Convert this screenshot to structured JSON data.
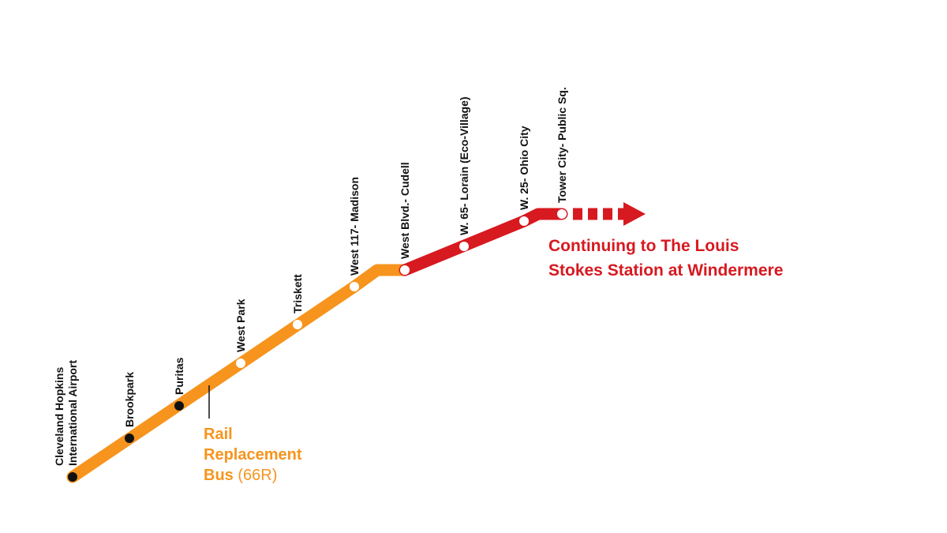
{
  "colors": {
    "orange_line": "#f7941d",
    "red_line": "#d71920",
    "label_text": "#111111",
    "closed_station": "#111111",
    "open_station_fill": "#ffffff"
  },
  "stations": [
    {
      "name_lines": [
        "Cleveland Hopkins",
        "International Airport"
      ],
      "status": "bus",
      "segment": "orange"
    },
    {
      "name_lines": [
        "Brookpark"
      ],
      "status": "bus",
      "segment": "orange"
    },
    {
      "name_lines": [
        "Puritas"
      ],
      "status": "bus",
      "segment": "orange"
    },
    {
      "name_lines": [
        "West Park"
      ],
      "status": "rail",
      "segment": "orange"
    },
    {
      "name_lines": [
        "Triskett"
      ],
      "status": "rail",
      "segment": "orange"
    },
    {
      "name_lines": [
        "West 117- Madison"
      ],
      "status": "rail",
      "segment": "orange"
    },
    {
      "name_lines": [
        "West Blvd.- Cudell"
      ],
      "status": "rail",
      "segment": "red"
    },
    {
      "name_lines": [
        "W. 65- Lorain (Eco-Village)"
      ],
      "status": "rail",
      "segment": "red"
    },
    {
      "name_lines": [
        "W. 25- Ohio City"
      ],
      "status": "rail",
      "segment": "red"
    },
    {
      "name_lines": [
        "Tower City- Public Sq."
      ],
      "status": "rail",
      "segment": "red"
    }
  ],
  "bus_note": {
    "line1": "Rail",
    "line2": "Replacement",
    "line3_bold": "Bus",
    "line3_code": "(66R)"
  },
  "continue_note": {
    "line1": "Continuing to The Louis",
    "line2": "Stokes Station at Windermere"
  },
  "arrow_icon": "arrow-right-icon"
}
